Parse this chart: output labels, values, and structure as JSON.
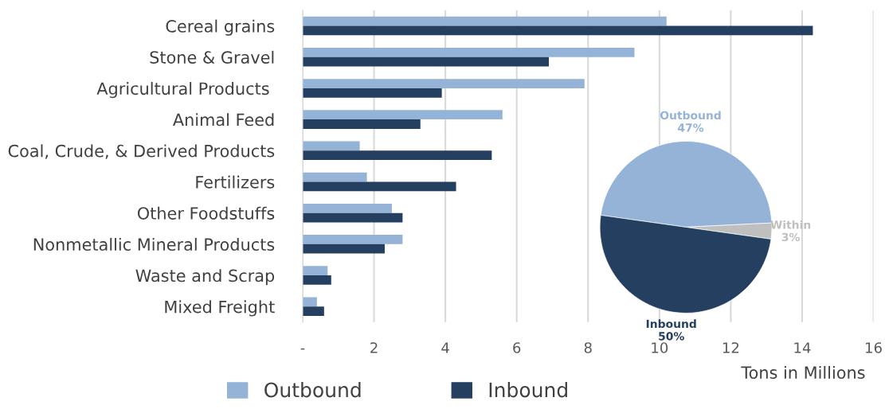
{
  "chart_data": [
    {
      "type": "bar",
      "orientation": "horizontal",
      "categories": [
        "Cereal grains",
        "Stone & Gravel",
        "Agricultural Products ",
        "Animal Feed",
        "Coal, Crude, & Derived Products",
        "Fertilizers",
        "Other Foodstuffs",
        "Nonmetallic Mineral Products",
        "Waste and Scrap",
        "Mixed Freight"
      ],
      "series": [
        {
          "name": "Outbound",
          "color": "#95b3d7",
          "values": [
            10.2,
            9.3,
            7.9,
            5.6,
            1.6,
            1.8,
            2.5,
            2.8,
            0.7,
            0.4
          ]
        },
        {
          "name": "Inbound",
          "color": "#243f60",
          "values": [
            14.3,
            6.9,
            3.9,
            3.3,
            5.3,
            4.3,
            2.8,
            2.3,
            0.8,
            0.6
          ]
        }
      ],
      "xlim": [
        0,
        16
      ],
      "xticks": [
        {
          "value": 0,
          "label": "-"
        },
        2,
        4,
        6,
        8,
        10,
        12,
        14,
        16
      ],
      "xlabel": "Tons in Millions",
      "grid": "x",
      "legend": "bottom"
    },
    {
      "type": "pie",
      "categories": [
        "Outbound",
        "Within",
        "Inbound"
      ],
      "values": [
        47,
        3,
        50
      ],
      "colors": [
        "#95b3d7",
        "#bfbfbf",
        "#243f60"
      ],
      "value_labels": [
        "47%",
        "3%",
        "50%"
      ]
    }
  ]
}
